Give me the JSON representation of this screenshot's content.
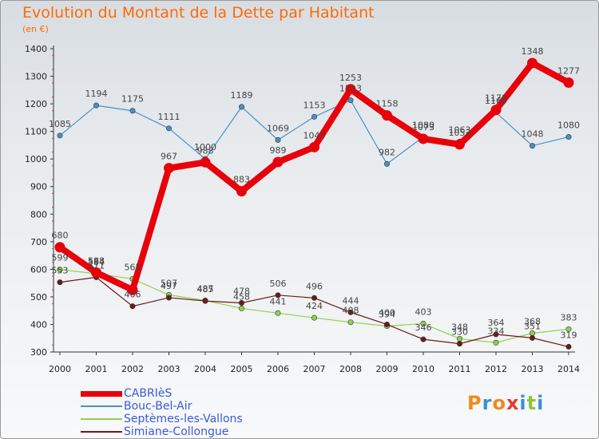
{
  "header": {
    "title": "Evolution du Montant de la Dette par Habitant",
    "unit": "(en €)"
  },
  "logo": {
    "text": "Proxiti",
    "colors": [
      "#f08a1c",
      "#3a8fd9",
      "#f08a1c",
      "#e23b2e",
      "#3a8fd9",
      "#8cc63f",
      "#3a8fd9"
    ]
  },
  "chart_data": {
    "type": "line",
    "title": "Evolution du Montant de la Dette par Habitant",
    "ylabel": "(en €)",
    "xlabel": "",
    "ylim": [
      300,
      1400
    ],
    "yticks": [
      300,
      400,
      500,
      600,
      700,
      800,
      900,
      1000,
      1100,
      1200,
      1300,
      1400
    ],
    "x": [
      "2000",
      "2001",
      "2002",
      "2003",
      "2004",
      "2005",
      "2006",
      "2007",
      "2008",
      "2009",
      "2010",
      "2011",
      "2012",
      "2013",
      "2014"
    ],
    "grid": false,
    "legend": "bottom-left",
    "series": [
      {
        "name": "CABRIèS",
        "color": "#e8000a",
        "values": [
          680,
          588,
          525,
          967,
          988,
          883,
          989,
          1043,
          1253,
          1158,
          1073,
          1053,
          1178,
          1348,
          1277
        ],
        "labels": [
          "680",
          "588",
          "",
          "967",
          "988",
          "883",
          "989",
          "1043",
          "1253",
          "1158",
          "1073",
          "1053",
          "1178",
          "1348",
          "1277"
        ]
      },
      {
        "name": "Bouc-Bel-Air",
        "color": "#4a90c8",
        "values": [
          1085,
          1194,
          1175,
          1111,
          1000,
          1189,
          1069,
          1153,
          1213,
          982,
          1080,
          1063,
          1169,
          1048,
          1080
        ],
        "labels": [
          "1085",
          "1194",
          "1175",
          "1111",
          "1000",
          "1189",
          "1069",
          "1153",
          "1213",
          "982",
          "1080",
          "1063",
          "1169",
          "1048",
          "1080"
        ]
      },
      {
        "name": "Septèmes-les-Vallons",
        "color": "#8fd14f",
        "values": [
          599,
          584,
          565,
          507,
          487,
          458,
          441,
          424,
          408,
          394,
          403,
          348,
          334,
          368,
          383
        ],
        "labels": [
          "599",
          "584",
          "565",
          "507",
          "487",
          "458",
          "441",
          "424",
          "408",
          "394",
          "403",
          "348",
          "334",
          "368",
          "383"
        ]
      },
      {
        "name": "Simiane-Collongue",
        "color": "#6b1a1a",
        "values": [
          553,
          571,
          466,
          497,
          485,
          478,
          506,
          496,
          444,
          400,
          346,
          330,
          364,
          351,
          319
        ],
        "labels": [
          "553",
          "571",
          "466",
          "497",
          "485",
          "478",
          "506",
          "496",
          "444",
          "400",
          "346",
          "330",
          "364",
          "351",
          "319"
        ]
      }
    ]
  }
}
